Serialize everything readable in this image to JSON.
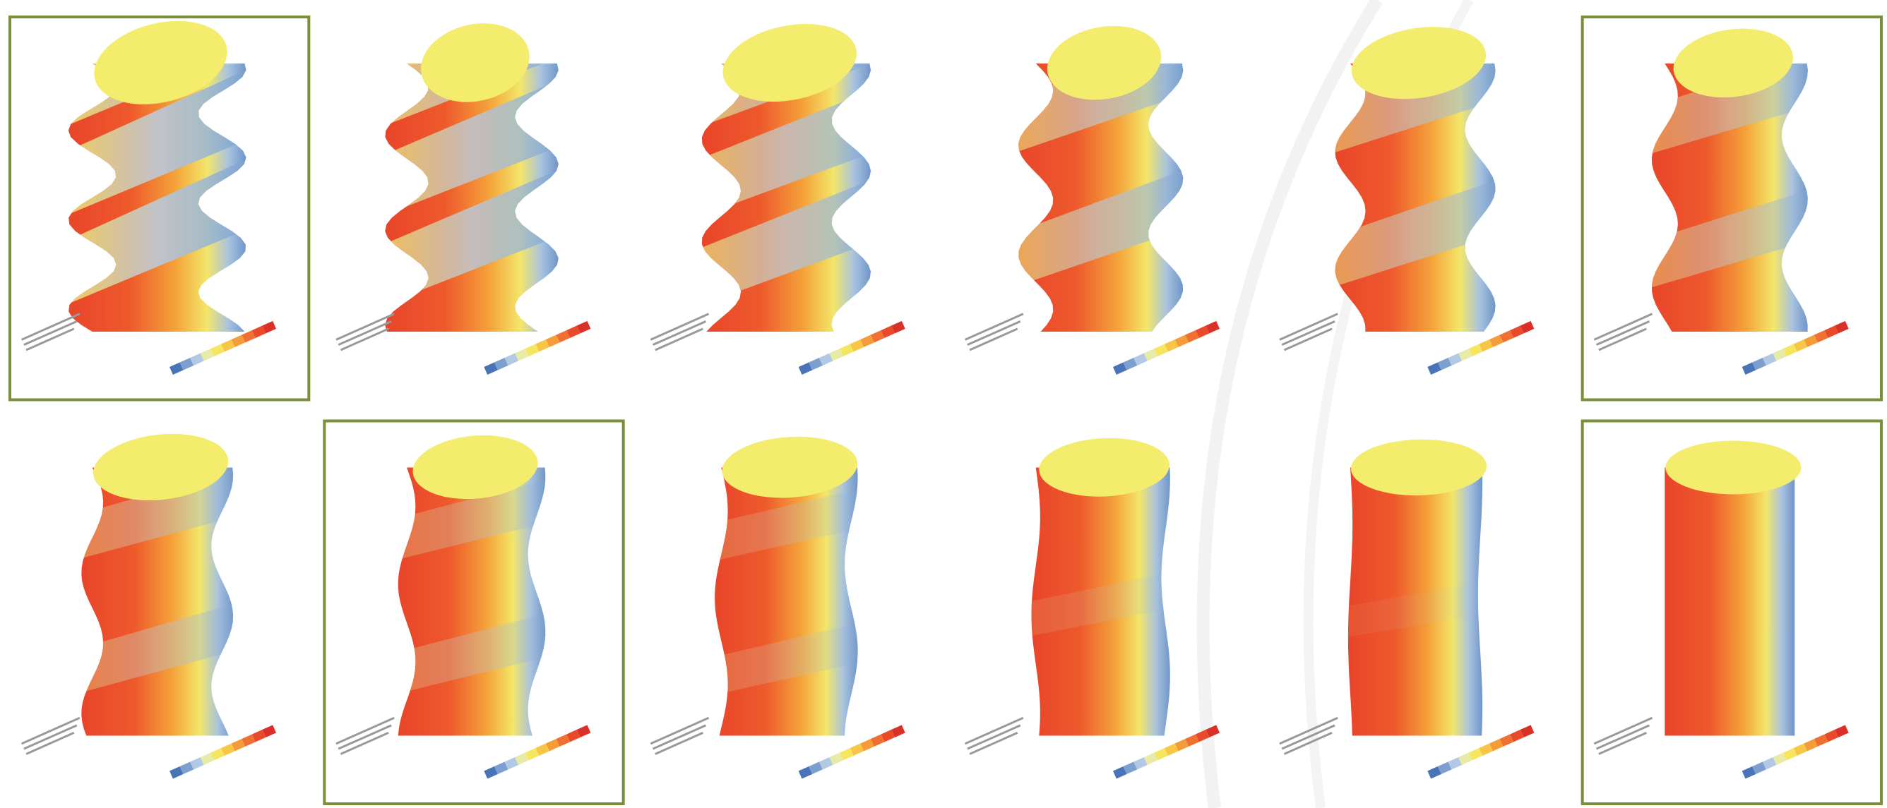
{
  "panels": [
    {
      "highlighted": true
    },
    {
      "highlighted": false
    },
    {
      "highlighted": false
    },
    {
      "highlighted": false
    },
    {
      "highlighted": false
    },
    {
      "highlighted": true
    },
    {
      "highlighted": false
    },
    {
      "highlighted": true
    },
    {
      "highlighted": false
    },
    {
      "highlighted": false
    },
    {
      "highlighted": false
    },
    {
      "highlighted": true
    }
  ]
}
